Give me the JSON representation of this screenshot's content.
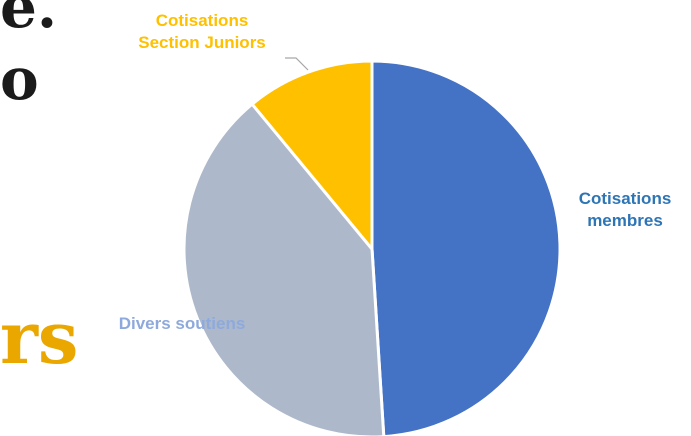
{
  "background_fragments": [
    {
      "text": "e."
    },
    {
      "text": "o"
    },
    {
      "text": "rs"
    }
  ],
  "chart_data": {
    "type": "pie",
    "title": "",
    "slices": [
      {
        "label": "Cotisations membres",
        "label_lines": [
          "Cotisations",
          "membres"
        ],
        "value": 49,
        "color": "#4472C4",
        "label_color": "#2E75B6"
      },
      {
        "label": "Divers soutiens",
        "label_lines": [
          "Divers soutiens"
        ],
        "value": 40,
        "color": "#ADB9CA",
        "label_color": "#8EA9DB"
      },
      {
        "label": "Cotisations Section Juniors",
        "label_lines": [
          "Cotisations",
          "Section Juniors"
        ],
        "value": 11,
        "color": "#FFC000",
        "label_color": "#FFC000"
      }
    ],
    "start_angle_deg": 0,
    "direction": "clockwise",
    "legend": "none",
    "data_labels": "outside"
  }
}
